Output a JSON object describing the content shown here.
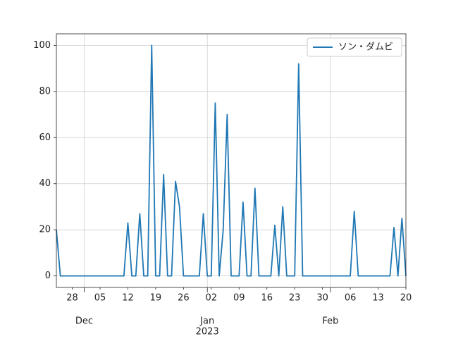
{
  "chart_data": {
    "type": "line",
    "x": [
      "2022-11-24",
      "2022-11-25",
      "2022-11-26",
      "2022-11-27",
      "2022-11-28",
      "2022-11-29",
      "2022-11-30",
      "2022-12-01",
      "2022-12-02",
      "2022-12-03",
      "2022-12-04",
      "2022-12-05",
      "2022-12-06",
      "2022-12-07",
      "2022-12-08",
      "2022-12-09",
      "2022-12-10",
      "2022-12-11",
      "2022-12-12",
      "2022-12-13",
      "2022-12-14",
      "2022-12-15",
      "2022-12-16",
      "2022-12-17",
      "2022-12-18",
      "2022-12-19",
      "2022-12-20",
      "2022-12-21",
      "2022-12-22",
      "2022-12-23",
      "2022-12-24",
      "2022-12-25",
      "2022-12-26",
      "2022-12-27",
      "2022-12-28",
      "2022-12-29",
      "2022-12-30",
      "2022-12-31",
      "2023-01-01",
      "2023-01-02",
      "2023-01-03",
      "2023-01-04",
      "2023-01-05",
      "2023-01-06",
      "2023-01-07",
      "2023-01-08",
      "2023-01-09",
      "2023-01-10",
      "2023-01-11",
      "2023-01-12",
      "2023-01-13",
      "2023-01-14",
      "2023-01-15",
      "2023-01-16",
      "2023-01-17",
      "2023-01-18",
      "2023-01-19",
      "2023-01-20",
      "2023-01-21",
      "2023-01-22",
      "2023-01-23",
      "2023-01-24",
      "2023-01-25",
      "2023-01-26",
      "2023-01-27",
      "2023-01-28",
      "2023-01-29",
      "2023-01-30",
      "2023-01-31",
      "2023-02-01",
      "2023-02-02",
      "2023-02-03",
      "2023-02-04",
      "2023-02-05",
      "2023-02-06",
      "2023-02-07",
      "2023-02-08",
      "2023-02-09",
      "2023-02-10",
      "2023-02-11",
      "2023-02-12",
      "2023-02-13",
      "2023-02-14",
      "2023-02-15",
      "2023-02-16",
      "2023-02-17",
      "2023-02-18",
      "2023-02-19",
      "2023-02-20"
    ],
    "series": [
      {
        "name": "ソン・ダムビ",
        "color": "#1f77b4",
        "values": [
          20,
          0,
          0,
          0,
          0,
          0,
          0,
          0,
          0,
          0,
          0,
          0,
          0,
          0,
          0,
          0,
          0,
          0,
          23,
          0,
          0,
          27,
          0,
          0,
          100,
          0,
          0,
          44,
          0,
          0,
          41,
          30,
          0,
          0,
          0,
          0,
          0,
          27,
          0,
          0,
          75,
          0,
          20,
          70,
          0,
          0,
          0,
          32,
          0,
          0,
          38,
          0,
          0,
          0,
          0,
          22,
          0,
          30,
          0,
          0,
          0,
          92,
          0,
          0,
          0,
          0,
          0,
          0,
          0,
          0,
          0,
          0,
          0,
          0,
          0,
          28,
          0,
          0,
          0,
          0,
          0,
          0,
          0,
          0,
          0,
          21,
          0,
          25,
          0
        ]
      }
    ],
    "xlim": [
      "2022-11-24",
      "2023-02-20"
    ],
    "xticks": [
      {
        "value": "2022-11-28",
        "label": "28"
      },
      {
        "value": "2022-12-05",
        "label": "05"
      },
      {
        "value": "2022-12-12",
        "label": "12"
      },
      {
        "value": "2022-12-19",
        "label": "19"
      },
      {
        "value": "2022-12-26",
        "label": "26"
      },
      {
        "value": "2023-01-02",
        "label": "02"
      },
      {
        "value": "2023-01-09",
        "label": "09"
      },
      {
        "value": "2023-01-16",
        "label": "16"
      },
      {
        "value": "2023-01-23",
        "label": "23"
      },
      {
        "value": "2023-01-30",
        "label": "30"
      },
      {
        "value": "2023-02-06",
        "label": "06"
      },
      {
        "value": "2023-02-13",
        "label": "13"
      },
      {
        "value": "2023-02-20",
        "label": "20"
      }
    ],
    "month_ticks": [
      {
        "value": "2022-12-01",
        "label": "Dec"
      },
      {
        "value": "2023-01-01",
        "label": "Jan",
        "year": "2023"
      },
      {
        "value": "2023-02-01",
        "label": "Feb"
      }
    ],
    "ylim": [
      -5,
      105
    ],
    "yticks": [
      0,
      20,
      40,
      60,
      80,
      100
    ],
    "grid": true,
    "legend": "upper right"
  }
}
